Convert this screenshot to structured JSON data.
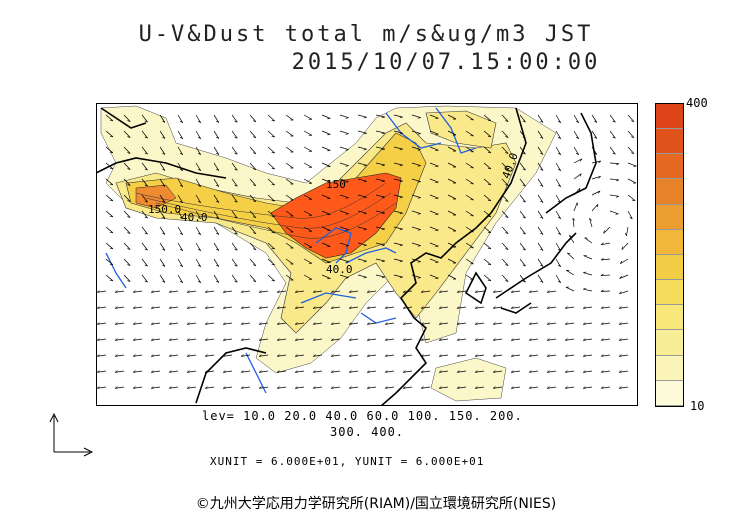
{
  "title_line1": "U-V&Dust total m/s&ug/m3 JST",
  "title_line2": "2015/10/07.15:00:00",
  "colorbar": {
    "max_label": "400",
    "min_label": "10",
    "colors": [
      "#fcfad8",
      "#fbf4b8",
      "#f9ee98",
      "#f8e77a",
      "#f5dc5a",
      "#f3cc45",
      "#f0b73a",
      "#ec9d30",
      "#e88228",
      "#e46822",
      "#e0531c",
      "#dd4519"
    ]
  },
  "levels_line1": "lev= 10.0 20.0 40.0 60.0 100. 150. 200.",
  "levels_line2": "300. 400.",
  "unit_text": "XUNIT = 6.000E+01, YUNIT = 6.000E+01",
  "credit": "©九州大学応用力学研究所(RIAM)/国立環境研究所(NIES)",
  "contour_labels": [
    "150.0",
    "40.0",
    "150",
    "40.0",
    "40.0"
  ],
  "map_colors": {
    "coast": "#000000",
    "rivers": "#1f5fe0",
    "dust_low": "#fbf4b8",
    "dust_mid": "#f5d75a",
    "dust_high": "#ee6a22",
    "dust_peak": "#ff5a1a"
  }
}
